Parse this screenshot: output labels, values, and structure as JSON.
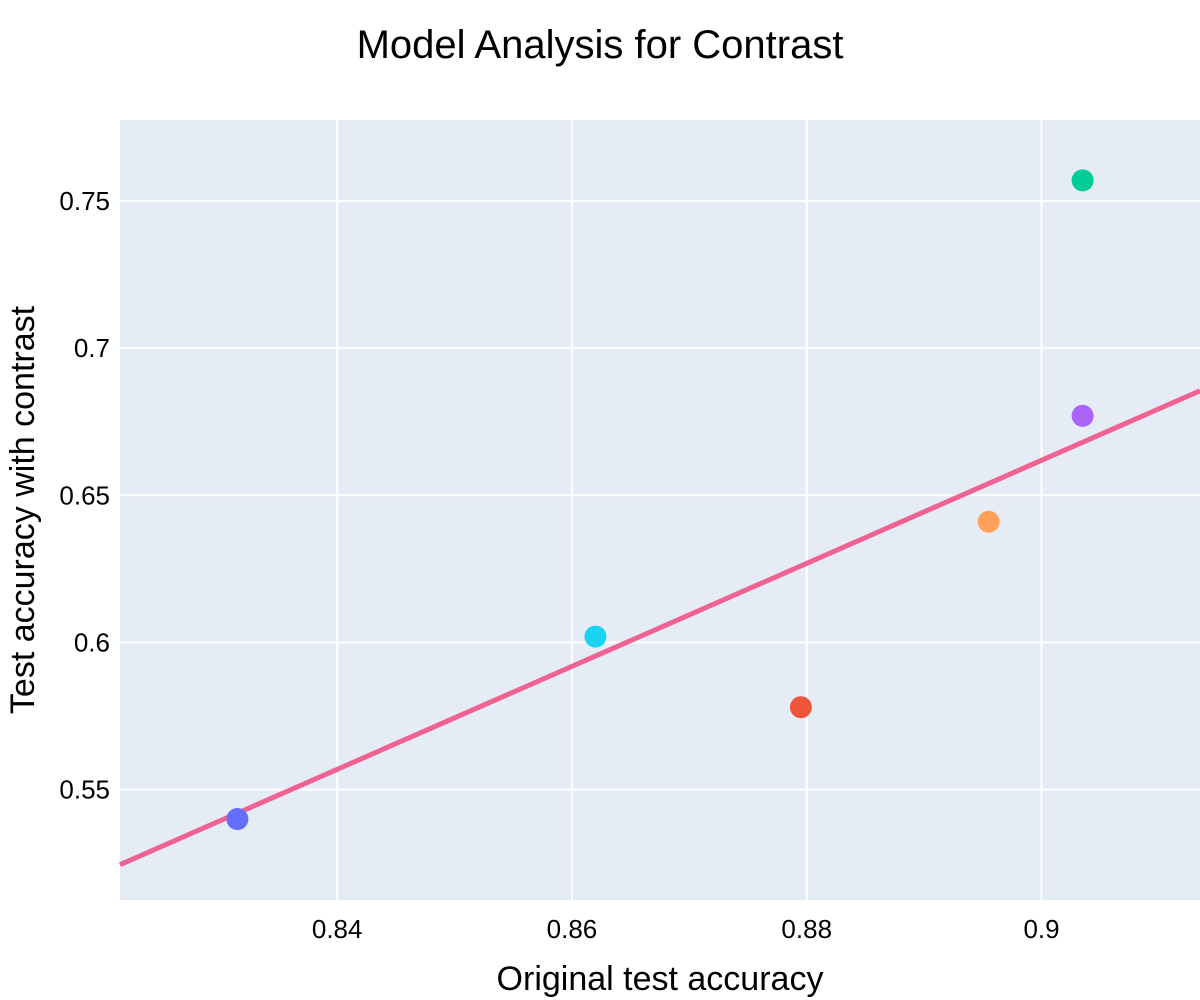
{
  "chart_data": {
    "type": "scatter",
    "title": "Model Analysis for Contrast",
    "xlabel": "Original test accuracy",
    "ylabel": "Test accuracy with contrast",
    "xlim": [
      0.8215,
      0.9135
    ],
    "ylim": [
      0.5125,
      0.7775
    ],
    "xticks": [
      {
        "value": 0.84,
        "label": "0.84"
      },
      {
        "value": 0.86,
        "label": "0.86"
      },
      {
        "value": 0.88,
        "label": "0.88"
      },
      {
        "value": 0.9,
        "label": "0.9"
      }
    ],
    "yticks": [
      {
        "value": 0.55,
        "label": "0.55"
      },
      {
        "value": 0.6,
        "label": "0.6"
      },
      {
        "value": 0.65,
        "label": "0.65"
      },
      {
        "value": 0.7,
        "label": "0.7"
      },
      {
        "value": 0.75,
        "label": "0.75"
      }
    ],
    "grid": true,
    "legend": "none",
    "background_color": "#e5ecf6",
    "points": [
      {
        "x": 0.8315,
        "y": 0.54,
        "color": "#636efa"
      },
      {
        "x": 0.862,
        "y": 0.602,
        "color": "#19d3f3"
      },
      {
        "x": 0.8795,
        "y": 0.578,
        "color": "#ef553b"
      },
      {
        "x": 0.8955,
        "y": 0.641,
        "color": "#ffa15a"
      },
      {
        "x": 0.9035,
        "y": 0.677,
        "color": "#ab63fa"
      },
      {
        "x": 0.9035,
        "y": 0.757,
        "color": "#00cc96"
      }
    ],
    "trendline": {
      "color": "#f06292",
      "x": [
        0.8215,
        0.9135
      ],
      "y": [
        0.5245,
        0.6855
      ]
    }
  }
}
